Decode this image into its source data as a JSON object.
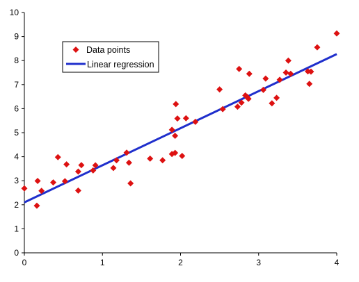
{
  "chart_data": {
    "type": "scatter",
    "title": "",
    "xlabel": "",
    "ylabel": "",
    "xlim": [
      0,
      4
    ],
    "ylim": [
      0,
      10
    ],
    "x_ticks": [
      0,
      1,
      2,
      3,
      4
    ],
    "y_ticks": [
      0,
      1,
      2,
      3,
      4,
      5,
      6,
      7,
      8,
      9,
      10
    ],
    "grid": false,
    "legend_position": "top-left",
    "marker_color": "#dd1111",
    "line_color": "#1f2fcc",
    "series": [
      {
        "name": "Data points",
        "kind": "scatter",
        "points": [
          [
            0.0,
            2.68
          ],
          [
            0.16,
            1.96
          ],
          [
            0.17,
            2.99
          ],
          [
            0.22,
            2.58
          ],
          [
            0.37,
            2.93
          ],
          [
            0.43,
            3.98
          ],
          [
            0.52,
            2.98
          ],
          [
            0.54,
            3.68
          ],
          [
            0.69,
            2.59
          ],
          [
            0.69,
            3.38
          ],
          [
            0.73,
            3.65
          ],
          [
            0.88,
            3.43
          ],
          [
            0.91,
            3.64
          ],
          [
            1.14,
            3.53
          ],
          [
            1.18,
            3.85
          ],
          [
            1.31,
            4.17
          ],
          [
            1.34,
            3.75
          ],
          [
            1.36,
            2.89
          ],
          [
            1.61,
            3.92
          ],
          [
            1.77,
            3.85
          ],
          [
            1.89,
            4.11
          ],
          [
            1.89,
            5.12
          ],
          [
            1.93,
            4.16
          ],
          [
            1.93,
            4.87
          ],
          [
            1.94,
            6.19
          ],
          [
            1.96,
            5.59
          ],
          [
            2.02,
            4.03
          ],
          [
            2.07,
            5.6
          ],
          [
            2.19,
            5.45
          ],
          [
            2.5,
            6.8
          ],
          [
            2.54,
            5.98
          ],
          [
            2.73,
            6.08
          ],
          [
            2.75,
            7.65
          ],
          [
            2.78,
            6.25
          ],
          [
            2.83,
            6.55
          ],
          [
            2.85,
            6.5
          ],
          [
            2.87,
            6.41
          ],
          [
            2.88,
            7.45
          ],
          [
            3.06,
            6.78
          ],
          [
            3.09,
            7.25
          ],
          [
            3.17,
            6.22
          ],
          [
            3.23,
            6.45
          ],
          [
            3.27,
            7.2
          ],
          [
            3.35,
            7.5
          ],
          [
            3.38,
            8.0
          ],
          [
            3.41,
            7.45
          ],
          [
            3.63,
            7.55
          ],
          [
            3.65,
            7.03
          ],
          [
            3.67,
            7.54
          ],
          [
            3.75,
            8.55
          ],
          [
            4.0,
            9.13
          ]
        ]
      },
      {
        "name": "Linear regression",
        "kind": "line",
        "points": [
          [
            0,
            2.1
          ],
          [
            4,
            8.27
          ]
        ]
      }
    ]
  }
}
